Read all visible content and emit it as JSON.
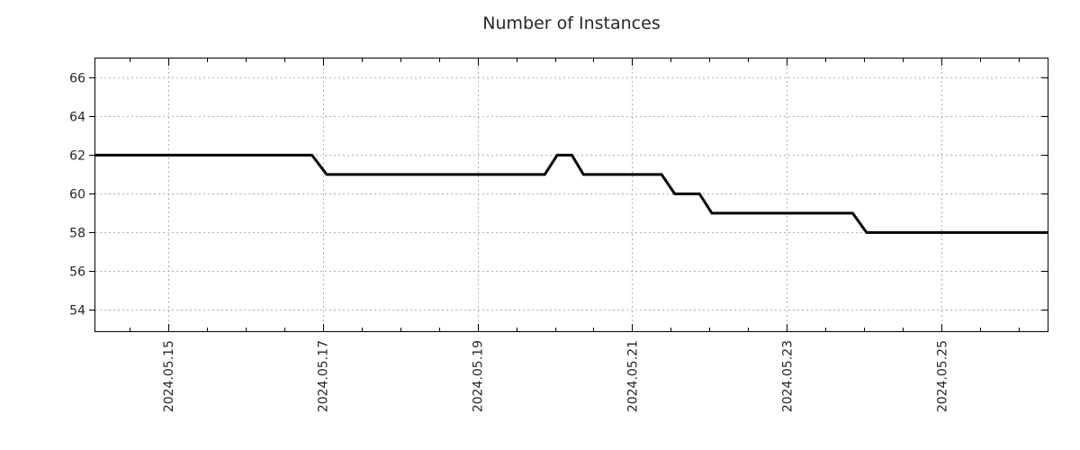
{
  "chart_data": {
    "type": "line",
    "title": "Number of Instances",
    "legend": "none",
    "grid": "dotted",
    "series": [
      {
        "name": "instances",
        "color": "#000000",
        "line_width": 3,
        "points_unit": "x = day of May 2024 (decimal), y = instance count",
        "points": [
          [
            14.06,
            62
          ],
          [
            16.86,
            62
          ],
          [
            17.05,
            61
          ],
          [
            19.87,
            61
          ],
          [
            20.03,
            62
          ],
          [
            20.22,
            62
          ],
          [
            20.37,
            61
          ],
          [
            21.38,
            61
          ],
          [
            21.55,
            60
          ],
          [
            21.87,
            60
          ],
          [
            22.03,
            59
          ],
          [
            23.85,
            59
          ],
          [
            24.03,
            58
          ],
          [
            26.37,
            58
          ]
        ]
      }
    ],
    "x_axis": {
      "lim": [
        14.06,
        26.37
      ],
      "major_ticks": [
        15,
        17,
        19,
        21,
        23,
        25
      ],
      "major_tick_labels": [
        "2024.05.15",
        "2024.05.17",
        "2024.05.19",
        "2024.05.21",
        "2024.05.23",
        "2024.05.25"
      ],
      "minor_tick_step": 0.5,
      "label_rotation_deg": -90
    },
    "y_axis": {
      "lim": [
        52.9,
        67.0
      ],
      "major_ticks": [
        54,
        56,
        58,
        60,
        62,
        64,
        66
      ],
      "major_tick_labels": [
        "54",
        "56",
        "58",
        "60",
        "62",
        "64",
        "66"
      ]
    },
    "colors": {
      "line": "#000000",
      "grid": "#b0b0b0",
      "border": "#000000",
      "tick": "#000000",
      "text": "#262626",
      "background": "#ffffff"
    }
  }
}
